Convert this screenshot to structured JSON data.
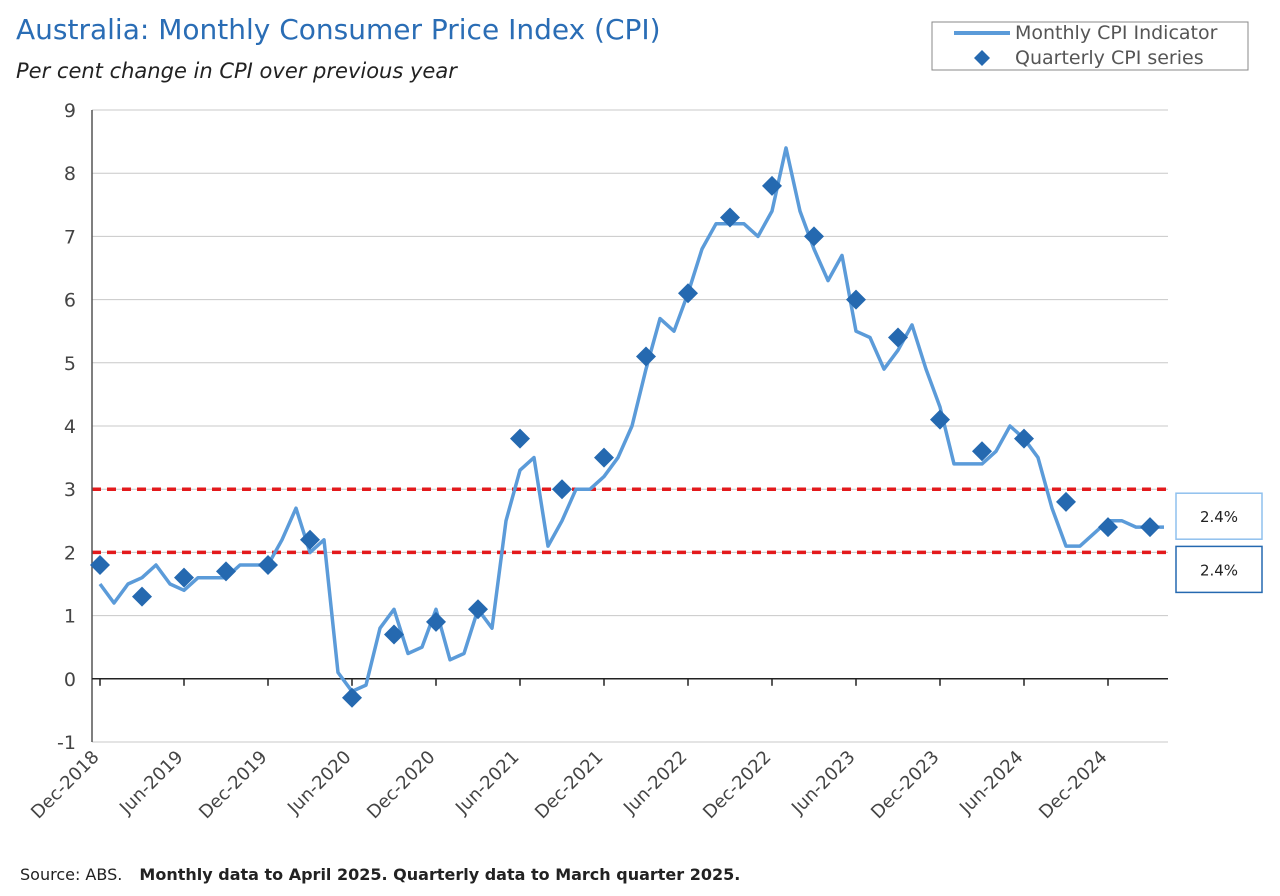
{
  "chart_data": {
    "type": "line",
    "title": "Australia: Monthly Consumer Price Index (CPI)",
    "subtitle": "Per cent change in CPI over previous year",
    "ylim": [
      -1,
      9
    ],
    "yticks": [
      -1,
      0,
      1,
      2,
      3,
      4,
      5,
      6,
      7,
      8,
      9
    ],
    "xtick_labels": [
      "Dec-2018",
      "Jun-2019",
      "Dec-2019",
      "Jun-2020",
      "Dec-2020",
      "Jun-2021",
      "Dec-2021",
      "Jun-2022",
      "Dec-2022",
      "Jun-2023",
      "Dec-2023",
      "Jun-2024",
      "Dec-2024"
    ],
    "grid": true,
    "legend": {
      "position": "top-right",
      "monthly_label": "Monthly CPI Indicator",
      "quarterly_label": "Quarterly CPI series"
    },
    "target_band": [
      2,
      3
    ],
    "series": [
      {
        "name": "Monthly CPI Indicator",
        "color": "#5b9bd9",
        "x": [
          "Dec-2018",
          "Jan-2019",
          "Feb-2019",
          "Mar-2019",
          "Apr-2019",
          "May-2019",
          "Jun-2019",
          "Jul-2019",
          "Aug-2019",
          "Sep-2019",
          "Oct-2019",
          "Nov-2019",
          "Dec-2019",
          "Jan-2020",
          "Feb-2020",
          "Mar-2020",
          "Apr-2020",
          "May-2020",
          "Jun-2020",
          "Jul-2020",
          "Aug-2020",
          "Sep-2020",
          "Oct-2020",
          "Nov-2020",
          "Dec-2020",
          "Jan-2021",
          "Feb-2021",
          "Mar-2021",
          "Apr-2021",
          "May-2021",
          "Jun-2021",
          "Jul-2021",
          "Aug-2021",
          "Sep-2021",
          "Oct-2021",
          "Nov-2021",
          "Dec-2021",
          "Jan-2022",
          "Feb-2022",
          "Mar-2022",
          "Apr-2022",
          "May-2022",
          "Jun-2022",
          "Jul-2022",
          "Aug-2022",
          "Sep-2022",
          "Oct-2022",
          "Nov-2022",
          "Dec-2022",
          "Jan-2023",
          "Feb-2023",
          "Mar-2023",
          "Apr-2023",
          "May-2023",
          "Jun-2023",
          "Jul-2023",
          "Aug-2023",
          "Sep-2023",
          "Oct-2023",
          "Nov-2023",
          "Dec-2023",
          "Jan-2024",
          "Feb-2024",
          "Mar-2024",
          "Apr-2024",
          "May-2024",
          "Jun-2024",
          "Jul-2024",
          "Aug-2024",
          "Sep-2024",
          "Oct-2024",
          "Nov-2024",
          "Dec-2024",
          "Jan-2025",
          "Feb-2025",
          "Mar-2025",
          "Apr-2025"
        ],
        "values": [
          1.5,
          1.2,
          1.5,
          1.6,
          1.8,
          1.5,
          1.4,
          1.6,
          1.6,
          1.6,
          1.8,
          1.8,
          1.8,
          2.2,
          2.7,
          2.0,
          2.2,
          0.1,
          -0.2,
          -0.1,
          0.8,
          1.1,
          0.4,
          0.5,
          1.1,
          0.3,
          0.4,
          1.1,
          0.8,
          2.5,
          3.3,
          3.5,
          2.1,
          2.5,
          3.0,
          3.0,
          3.2,
          3.5,
          4.0,
          4.9,
          5.7,
          5.5,
          6.1,
          6.8,
          7.2,
          7.2,
          7.2,
          7.0,
          7.4,
          8.4,
          7.4,
          6.8,
          6.3,
          6.7,
          5.5,
          5.4,
          4.9,
          5.2,
          5.6,
          4.9,
          4.3,
          3.4,
          3.4,
          3.4,
          3.6,
          4.0,
          3.8,
          3.5,
          2.7,
          2.1,
          2.1,
          2.3,
          2.5,
          2.5,
          2.4,
          2.4,
          2.4
        ]
      },
      {
        "name": "Quarterly CPI series",
        "color": "#2569b0",
        "x": [
          "Dec-2018",
          "Mar-2019",
          "Jun-2019",
          "Sep-2019",
          "Dec-2019",
          "Mar-2020",
          "Jun-2020",
          "Sep-2020",
          "Dec-2020",
          "Mar-2021",
          "Jun-2021",
          "Sep-2021",
          "Dec-2021",
          "Mar-2022",
          "Jun-2022",
          "Sep-2022",
          "Dec-2022",
          "Mar-2023",
          "Jun-2023",
          "Sep-2023",
          "Dec-2023",
          "Mar-2024",
          "Jun-2024",
          "Sep-2024",
          "Dec-2024",
          "Mar-2025"
        ],
        "values": [
          1.8,
          1.3,
          1.6,
          1.7,
          1.8,
          2.2,
          -0.3,
          0.7,
          0.9,
          1.1,
          3.8,
          3.0,
          3.5,
          5.1,
          6.1,
          7.3,
          7.8,
          7.0,
          6.0,
          5.4,
          4.1,
          3.6,
          3.8,
          2.8,
          2.4,
          2.4
        ]
      }
    ],
    "callouts": [
      {
        "series": "Monthly CPI Indicator",
        "label": "2.4%",
        "border": "#8fc0ee"
      },
      {
        "series": "Quarterly CPI series",
        "label": "2.4%",
        "border": "#2569b0"
      }
    ],
    "source": {
      "prefix": "Source: ABS.",
      "bold_text": "Monthly data to April 2025. Quarterly data to March quarter 2025."
    }
  }
}
